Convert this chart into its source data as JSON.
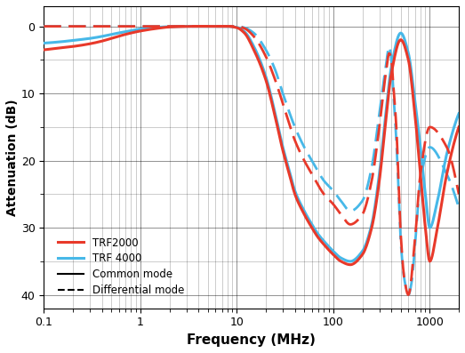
{
  "xlabel": "Frequency (MHz)",
  "ylabel": "Attenuation (dB)",
  "xlim": [
    0.1,
    2000
  ],
  "ylim": [
    42,
    -3
  ],
  "yticks": [
    0,
    10,
    20,
    30,
    40
  ],
  "ytick_labels": [
    "0",
    "10",
    "20",
    "30",
    "40"
  ],
  "colors": {
    "red": "#E8392A",
    "blue": "#47B8E8"
  },
  "trf2000_cm_f": [
    0.1,
    0.15,
    0.2,
    0.3,
    0.4,
    0.5,
    0.7,
    1.0,
    1.5,
    2.0,
    3.0,
    4.0,
    5.0,
    6.0,
    6.5,
    7.0,
    8.0,
    10.0,
    12,
    15,
    20,
    25,
    30,
    35,
    40,
    50,
    60,
    70,
    80,
    100,
    120,
    150,
    200,
    250,
    300,
    350,
    400,
    500,
    600,
    700,
    800,
    900,
    1000,
    1200,
    1500,
    2000
  ],
  "trf2000_cm_v": [
    3.5,
    3.2,
    3.0,
    2.6,
    2.2,
    1.8,
    1.2,
    0.7,
    0.3,
    0.1,
    0.02,
    0.0,
    0.0,
    0.0,
    0.0,
    0.0,
    0.0,
    0.2,
    1.0,
    3.5,
    8.0,
    13.5,
    18.5,
    22,
    25,
    28,
    30,
    31.5,
    32.5,
    34,
    35,
    35.5,
    34,
    30,
    23,
    14,
    7,
    2,
    5,
    13,
    22,
    30,
    35,
    30,
    22,
    15
  ],
  "trf4000_cm_f": [
    0.1,
    0.15,
    0.2,
    0.3,
    0.4,
    0.5,
    0.7,
    1.0,
    1.5,
    2.0,
    3.0,
    4.0,
    5.0,
    6.0,
    6.5,
    7.0,
    8.0,
    10.0,
    12,
    15,
    20,
    25,
    30,
    35,
    40,
    50,
    60,
    70,
    80,
    100,
    120,
    150,
    200,
    250,
    300,
    350,
    400,
    500,
    600,
    700,
    800,
    900,
    1000,
    1200,
    1500,
    2000
  ],
  "trf4000_cm_v": [
    2.5,
    2.3,
    2.1,
    1.8,
    1.5,
    1.2,
    0.8,
    0.4,
    0.15,
    0.05,
    0.0,
    0.0,
    0.0,
    0.0,
    0.0,
    0.0,
    0.0,
    0.15,
    0.8,
    3.0,
    7.5,
    13.0,
    18.0,
    21.5,
    24.5,
    27.5,
    29.5,
    31.0,
    32.0,
    33.5,
    34.5,
    35.0,
    33.5,
    29.5,
    22,
    13,
    6,
    1,
    4,
    11,
    18,
    25,
    30,
    26,
    19,
    13
  ],
  "trf2000_dm_f": [
    0.1,
    0.5,
    1.0,
    2.0,
    3.0,
    4.0,
    5.0,
    6.0,
    7.0,
    7.5,
    8.0,
    9.0,
    10.0,
    12,
    15,
    20,
    25,
    30,
    40,
    50,
    60,
    80,
    100,
    120,
    150,
    200,
    250,
    300,
    350,
    380,
    400,
    420,
    450,
    480,
    500,
    550,
    600,
    700,
    800,
    1000,
    1500,
    2000
  ],
  "trf2000_dm_v": [
    0.0,
    0.0,
    0.0,
    0.0,
    0.0,
    0.0,
    0.0,
    0.0,
    0.0,
    0.0,
    0.0,
    0.0,
    0.0,
    0.3,
    1.5,
    4.5,
    8.0,
    11.5,
    17,
    20,
    22,
    25,
    26.5,
    28,
    29.5,
    28,
    23,
    15,
    7,
    4,
    5,
    9,
    15,
    25,
    31,
    38,
    40,
    32,
    22,
    15,
    18,
    25
  ],
  "trf4000_dm_f": [
    0.1,
    0.5,
    1.0,
    2.0,
    3.0,
    4.0,
    5.0,
    6.0,
    7.0,
    7.5,
    8.0,
    9.0,
    10.0,
    12,
    15,
    20,
    25,
    30,
    40,
    50,
    60,
    80,
    100,
    120,
    150,
    200,
    250,
    300,
    350,
    380,
    400,
    420,
    450,
    480,
    500,
    550,
    600,
    650,
    700,
    800,
    1000,
    1500,
    2000
  ],
  "trf4000_dm_v": [
    0.0,
    0.0,
    0.0,
    0.0,
    0.0,
    0.0,
    0.0,
    0.0,
    0.0,
    0.0,
    0.0,
    0.0,
    0.0,
    0.2,
    1.0,
    3.5,
    6.5,
    10,
    15,
    18,
    20,
    23,
    24.5,
    26,
    27.5,
    26,
    21,
    13,
    6,
    3,
    5,
    10,
    17,
    26,
    32,
    38,
    40,
    38,
    33,
    23,
    18,
    22,
    27
  ]
}
